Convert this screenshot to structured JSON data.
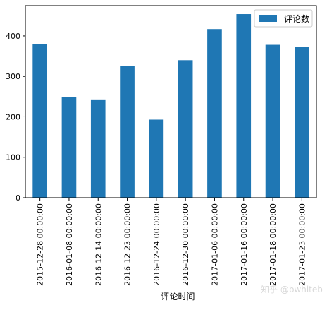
{
  "chart_data": {
    "type": "bar",
    "title": "",
    "xlabel": "评论时间",
    "ylabel": "",
    "categories": [
      "2015-12-28 00:00:00",
      "2016-01-08 00:00:00",
      "2016-12-14 00:00:00",
      "2016-12-23 00:00:00",
      "2016-12-24 00:00:00",
      "2016-12-30 00:00:00",
      "2017-01-06 00:00:00",
      "2017-01-16 00:00:00",
      "2017-01-18 00:00:00",
      "2017-01-23 00:00:00"
    ],
    "series": [
      {
        "name": "评论数",
        "values": [
          380,
          248,
          243,
          325,
          193,
          340,
          417,
          454,
          378,
          373
        ]
      }
    ],
    "ylim": [
      0,
      475
    ],
    "yticks": [
      0,
      100,
      200,
      300,
      400
    ],
    "grid": false,
    "legend_position": "top-right",
    "bar_color": "#1f77b4"
  },
  "watermark": "知乎 @bwhiteb"
}
